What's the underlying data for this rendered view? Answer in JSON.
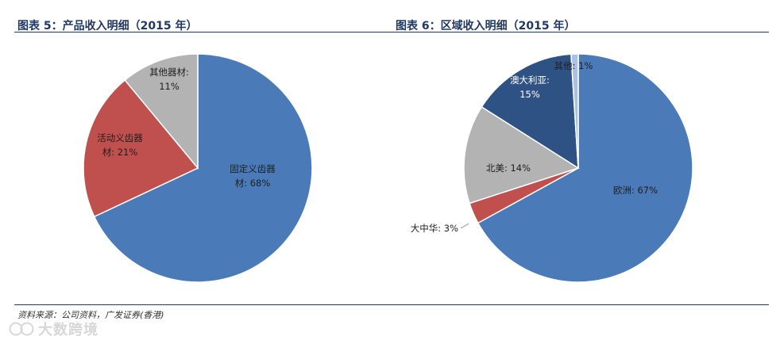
{
  "source_note": "资料来源：公司资料，广发证券(香港)",
  "watermark_text": "大数跨境",
  "chart_data": [
    {
      "type": "pie",
      "title": "图表 5：产品收入明细（2015 年）",
      "slices": [
        {
          "name": "固定义齿器材",
          "value": 68,
          "label_lines": [
            "固定义齿器",
            "材: 68%"
          ],
          "color": "#4a7ab8",
          "text_color": "#1f1f1f"
        },
        {
          "name": "活动义齿器材",
          "value": 21,
          "label_lines": [
            "活动义齿器",
            "材: 21%"
          ],
          "color": "#c0504d",
          "text_color": "#1f1f1f"
        },
        {
          "name": "其他器材",
          "value": 11,
          "label_lines": [
            "其他器材:",
            "11%"
          ],
          "color": "#b3b3b3",
          "text_color": "#1f1f1f"
        }
      ]
    },
    {
      "type": "pie",
      "title": "图表 6：区域收入明细（2015 年）",
      "slices": [
        {
          "name": "欧洲",
          "value": 67,
          "label_lines": [
            "欧洲: 67%"
          ],
          "color": "#4a7ab8",
          "text_color": "#1f1f1f"
        },
        {
          "name": "大中华",
          "value": 3,
          "label_lines": [
            "大中华: 3%"
          ],
          "color": "#c0504d",
          "text_color": "#1f1f1f"
        },
        {
          "name": "北美",
          "value": 14,
          "label_lines": [
            "北美: 14%"
          ],
          "color": "#b3b3b3",
          "text_color": "#1f1f1f"
        },
        {
          "name": "澳大利亚",
          "value": 15,
          "label_lines": [
            "澳大利亚:",
            "15%"
          ],
          "color": "#2f5284",
          "text_color": "#ffffff"
        },
        {
          "name": "其他",
          "value": 1,
          "label_lines": [
            "其他: 1%"
          ],
          "color": "#a9c1e2",
          "text_color": "#1f1f1f"
        }
      ]
    }
  ]
}
